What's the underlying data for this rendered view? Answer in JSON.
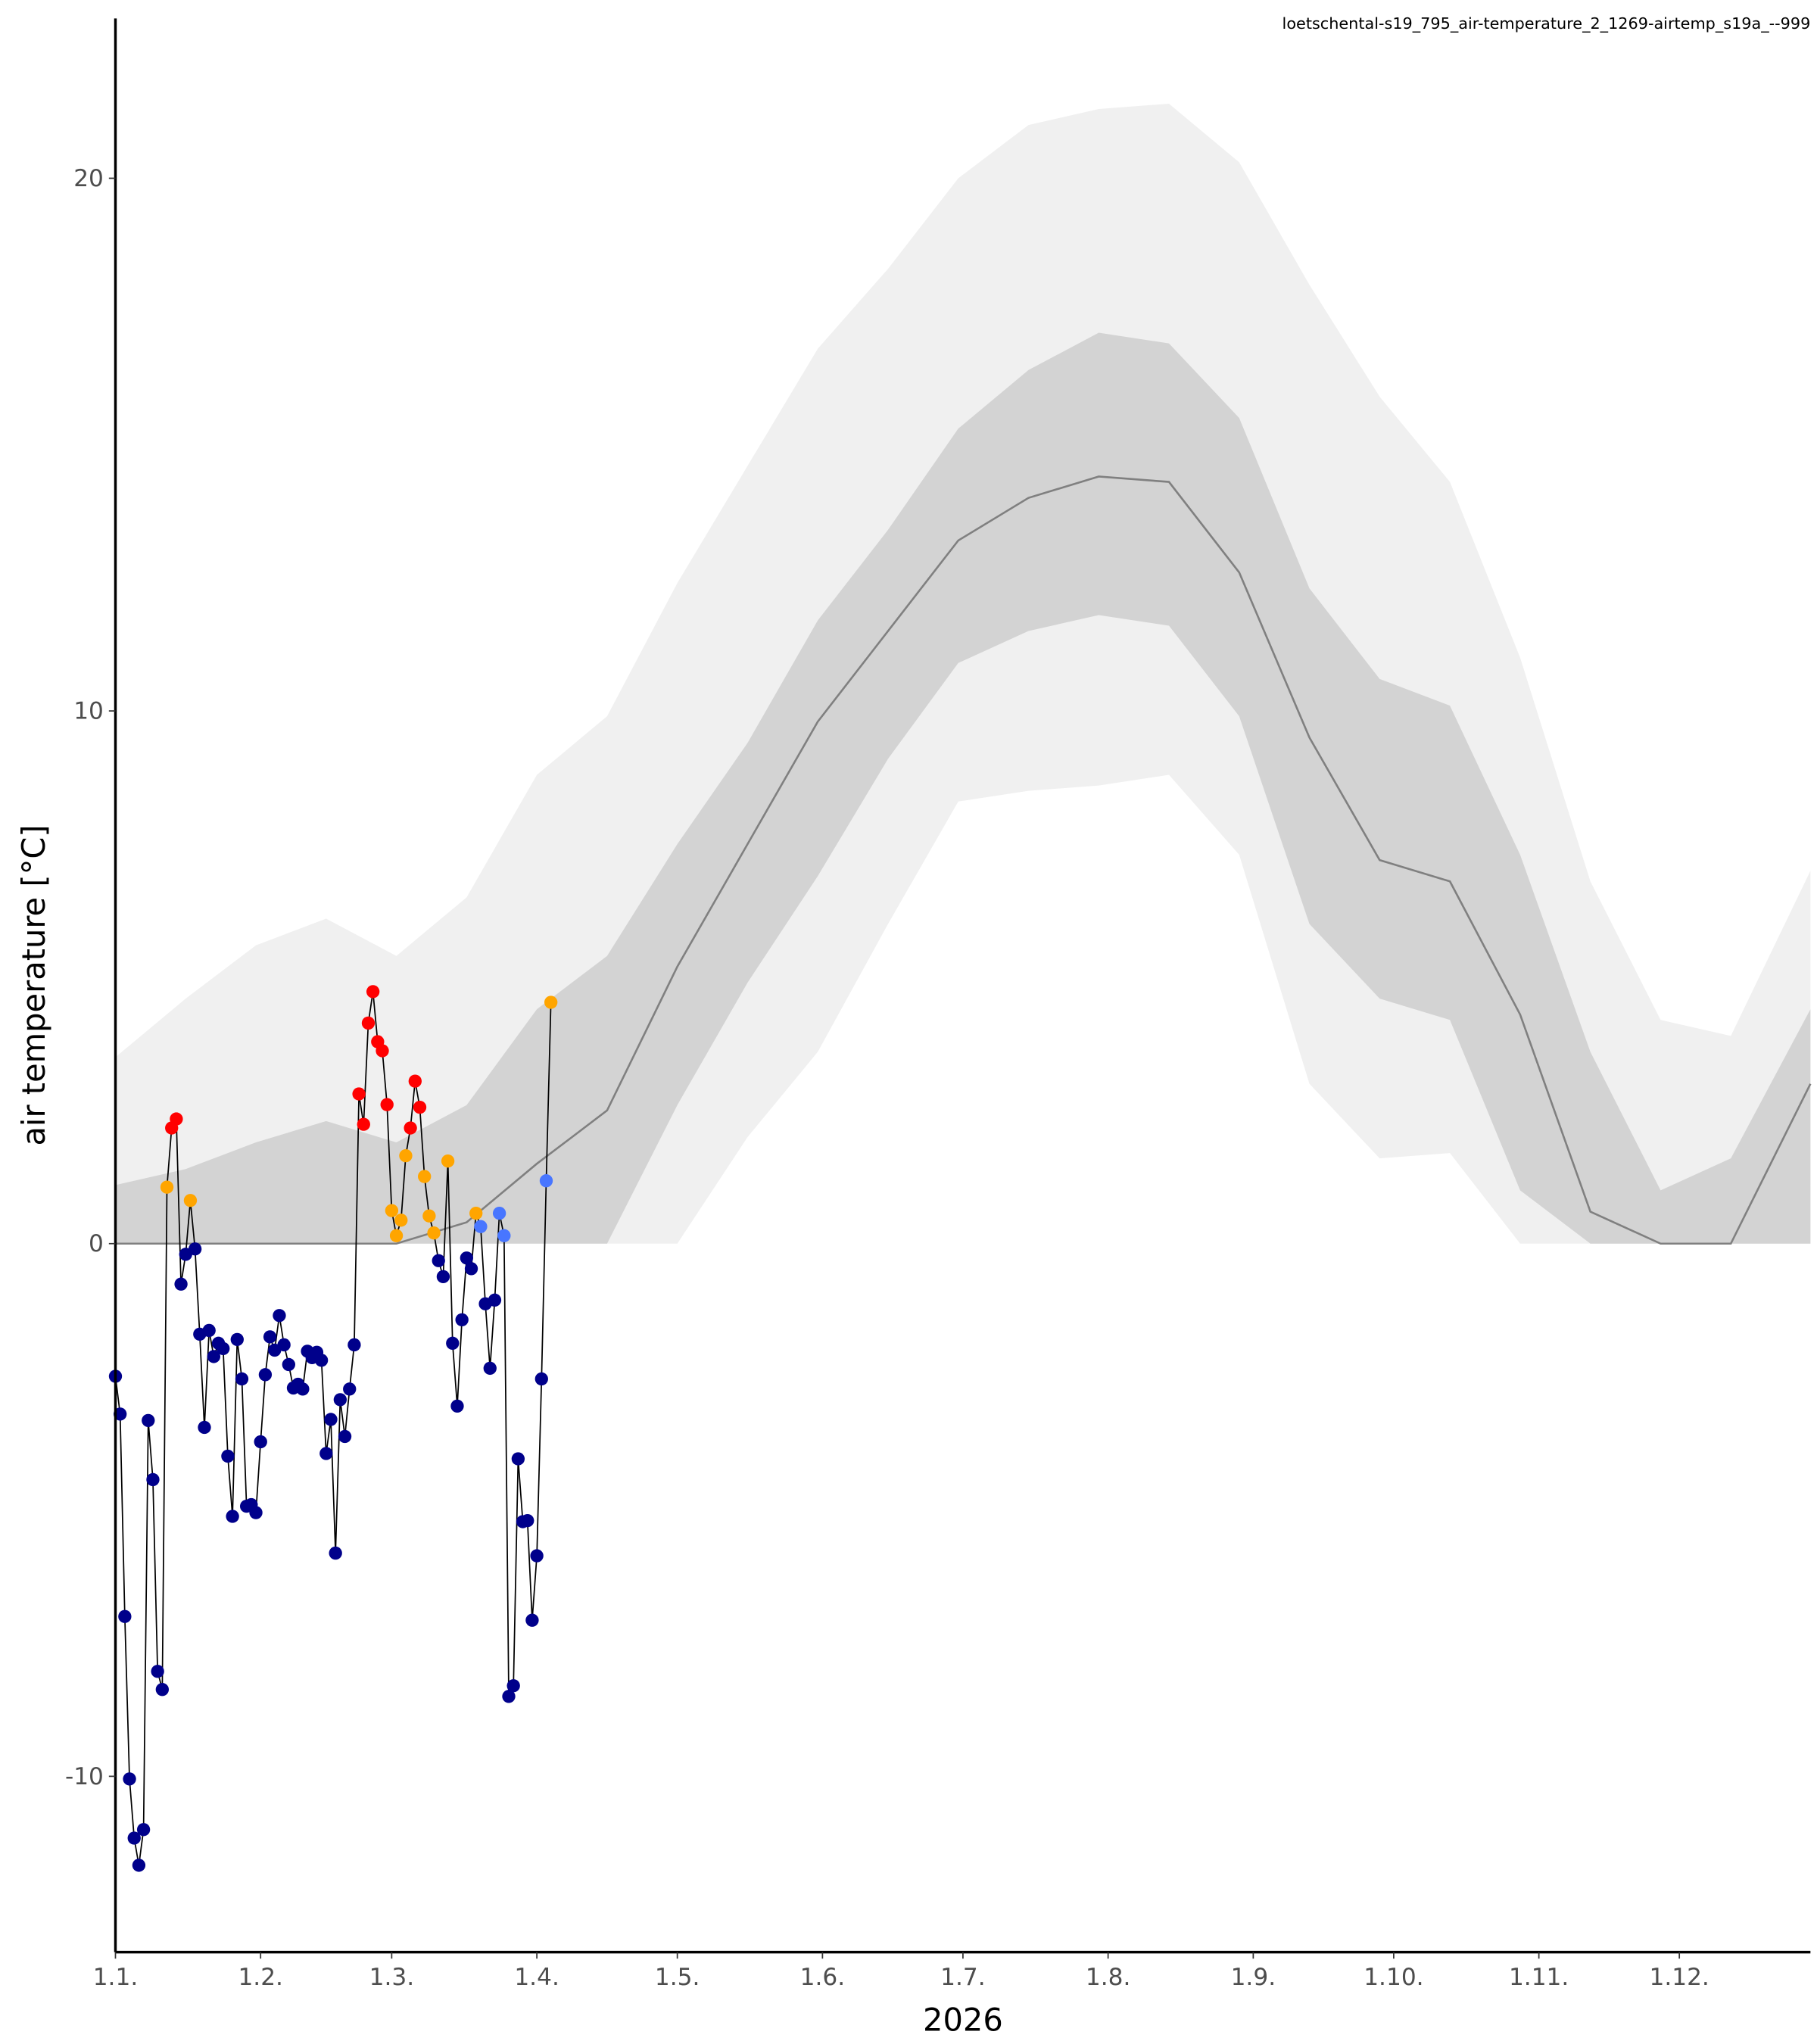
{
  "chart_data": {
    "type": "line",
    "title": "loetschental-s19_795_air-temperature_2_1269-airtemp_s19a_--999",
    "xlabel": "2026",
    "ylabel": "air temperature [°C]",
    "xlim": [
      0,
      362
    ],
    "ylim": [
      -13.3,
      23
    ],
    "xticks": [
      {
        "value": 0,
        "label": "1.1."
      },
      {
        "value": 31,
        "label": "1.2."
      },
      {
        "value": 59,
        "label": "1.3."
      },
      {
        "value": 90,
        "label": "1.4."
      },
      {
        "value": 120,
        "label": "1.5."
      },
      {
        "value": 151,
        "label": "1.6."
      },
      {
        "value": 181,
        "label": "1.7."
      },
      {
        "value": 212,
        "label": "1.8."
      },
      {
        "value": 243,
        "label": "1.9."
      },
      {
        "value": 273,
        "label": "1.10."
      },
      {
        "value": 304,
        "label": "1.11."
      },
      {
        "value": 334,
        "label": "1.12."
      }
    ],
    "yticks": [
      -10,
      0,
      10,
      20
    ],
    "grid": false,
    "x": [
      0,
      1,
      2,
      3,
      4,
      5,
      6,
      7,
      8,
      9,
      10,
      11,
      12,
      13,
      14,
      15,
      16,
      17,
      18,
      19,
      20,
      21,
      22,
      23,
      24,
      25,
      26,
      27,
      28,
      29,
      30,
      31,
      32,
      33,
      34,
      35,
      36,
      37,
      38,
      39,
      40,
      41,
      42,
      43,
      44,
      45,
      46,
      47,
      48,
      49,
      50,
      51,
      52,
      53,
      54,
      55,
      56,
      57,
      58,
      59,
      60,
      61,
      62,
      63,
      64,
      65,
      66,
      67,
      68,
      69,
      70,
      71,
      72,
      73,
      74,
      75,
      76,
      77,
      78,
      79,
      80,
      81,
      82,
      83,
      84,
      85,
      86,
      87,
      88,
      89,
      90,
      91,
      92,
      93
    ],
    "series": [
      {
        "color": "#000000",
        "values": [
          -2.49,
          -3.2,
          -7.0,
          -10.05,
          -11.16,
          -11.67,
          -11.0,
          -3.32,
          -4.43,
          -8.03,
          -8.37,
          1.06,
          2.17,
          2.34,
          -0.76,
          -0.2,
          0.81,
          -0.1,
          -1.7,
          -3.45,
          -1.63,
          -2.12,
          -1.87,
          -1.97,
          -3.99,
          -5.12,
          -1.8,
          -2.54,
          -4.93,
          -4.9,
          -5.05,
          -3.72,
          -2.46,
          -1.75,
          -2.0,
          -1.35,
          -1.9,
          -2.27,
          -2.71,
          -2.64,
          -2.73,
          -2.02,
          -2.14,
          -2.04,
          -2.19,
          -3.94,
          -3.3,
          -5.81,
          -2.93,
          -3.62,
          -2.73,
          -1.9,
          2.81,
          2.24,
          4.14,
          4.73,
          3.79,
          3.62,
          2.61,
          0.62,
          0.15,
          0.44,
          1.65,
          2.17,
          3.05,
          2.56,
          1.26,
          0.52,
          0.2,
          -0.32,
          -0.62,
          1.55,
          -1.87,
          -3.05,
          -1.43,
          -0.27,
          -0.47,
          0.57,
          0.32,
          -1.13,
          -2.34,
          -1.06,
          0.57,
          0.15,
          -8.5,
          -8.3,
          -4.04,
          -5.22,
          -5.2,
          -7.07,
          -5.86,
          -2.54,
          1.18,
          4.53
        ],
        "point_colors": [
          "#00008b",
          "#00008b",
          "#00008b",
          "#00008b",
          "#00008b",
          "#00008b",
          "#00008b",
          "#00008b",
          "#00008b",
          "#00008b",
          "#00008b",
          "#ffa500",
          "#ff0000",
          "#ff0000",
          "#00008b",
          "#00008b",
          "#ffa500",
          "#00008b",
          "#00008b",
          "#00008b",
          "#00008b",
          "#00008b",
          "#00008b",
          "#00008b",
          "#00008b",
          "#00008b",
          "#00008b",
          "#00008b",
          "#00008b",
          "#00008b",
          "#00008b",
          "#00008b",
          "#00008b",
          "#00008b",
          "#00008b",
          "#00008b",
          "#00008b",
          "#00008b",
          "#00008b",
          "#00008b",
          "#00008b",
          "#00008b",
          "#00008b",
          "#00008b",
          "#00008b",
          "#00008b",
          "#00008b",
          "#00008b",
          "#00008b",
          "#00008b",
          "#00008b",
          "#00008b",
          "#ff0000",
          "#ff0000",
          "#ff0000",
          "#ff0000",
          "#ff0000",
          "#ff0000",
          "#ff0000",
          "#ffa500",
          "#ffa500",
          "#ffa500",
          "#ffa500",
          "#ff0000",
          "#ff0000",
          "#ff0000",
          "#ffa500",
          "#ffa500",
          "#ffa500",
          "#00008b",
          "#00008b",
          "#ffa500",
          "#00008b",
          "#00008b",
          "#00008b",
          "#00008b",
          "#00008b",
          "#ffa500",
          "#4876ff",
          "#00008b",
          "#00008b",
          "#00008b",
          "#4876ff",
          "#4876ff",
          "#00008b",
          "#00008b",
          "#00008b",
          "#00008b",
          "#00008b",
          "#00008b",
          "#00008b",
          "#00008b",
          "#4876ff",
          "#ffa500"
        ]
      }
    ],
    "climatology": {
      "x": [
        0,
        15,
        30,
        45,
        60,
        75,
        90,
        105,
        120,
        135,
        150,
        165,
        180,
        195,
        210,
        225,
        240,
        255,
        270,
        285,
        300,
        315,
        330,
        345,
        362
      ],
      "outer": {
        "color": "#f0f0f0",
        "upper": [
          3.5,
          4.6,
          5.6,
          6.1,
          5.4,
          6.5,
          8.8,
          9.9,
          12.4,
          14.6,
          16.8,
          18.3,
          20.0,
          21.0,
          21.3,
          21.4,
          20.3,
          18.0,
          15.9,
          14.3,
          11.0,
          6.8,
          4.2,
          3.9,
          7.0
        ],
        "lower": [
          0,
          0,
          0,
          0,
          0,
          0,
          0,
          0,
          0,
          2.0,
          3.6,
          6.0,
          8.3,
          8.5,
          8.6,
          8.8,
          7.3,
          3.0,
          1.6,
          1.7,
          0,
          0,
          0,
          0,
          0
        ]
      },
      "inner": {
        "color": "#d3d3d3",
        "upper": [
          1.1,
          1.4,
          1.9,
          2.3,
          1.9,
          2.6,
          4.4,
          5.4,
          7.5,
          9.4,
          11.7,
          13.4,
          15.3,
          16.4,
          17.1,
          16.9,
          15.5,
          12.3,
          10.6,
          10.1,
          7.3,
          3.6,
          1.0,
          1.6,
          4.4
        ],
        "lower": [
          0,
          0,
          0,
          0,
          0,
          0,
          0,
          0,
          2.6,
          4.9,
          6.9,
          9.1,
          10.9,
          11.5,
          11.8,
          11.6,
          9.9,
          6.0,
          4.6,
          4.2,
          1.0,
          0,
          0,
          0,
          0
        ]
      },
      "median": {
        "color": "#808080",
        "values": [
          0,
          0,
          0,
          0,
          0,
          0.4,
          1.5,
          2.5,
          5.2,
          7.5,
          9.8,
          11.5,
          13.2,
          14.0,
          14.4,
          14.3,
          12.6,
          9.5,
          7.2,
          6.8,
          4.3,
          0.6,
          0,
          0,
          3.0
        ]
      }
    }
  }
}
